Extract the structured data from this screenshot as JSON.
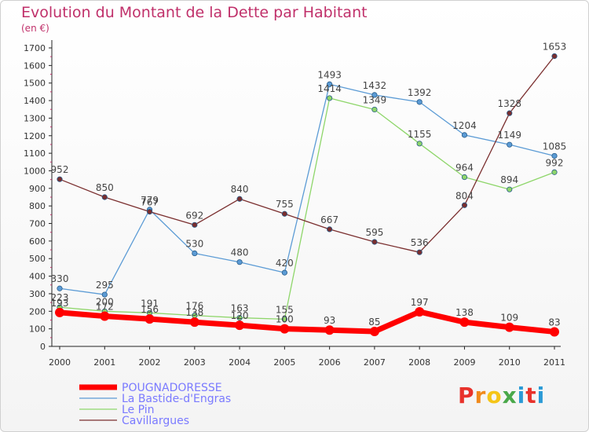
{
  "header": {
    "title": "Evolution du Montant de la Dette par Habitant",
    "subtitle": "(en €)"
  },
  "logo": {
    "text": "Proxiti",
    "colors": [
      "#e8322b",
      "#f08a1c",
      "#f5c518",
      "#4aa84a",
      "#2a9ad6",
      "#e8322b",
      "#2a9ad6"
    ]
  },
  "chart_data": {
    "type": "line",
    "title": "Evolution du Montant de la Dette par Habitant",
    "subtitle": "(en €)",
    "categories": [
      "2000",
      "2001",
      "2002",
      "2003",
      "2004",
      "2005",
      "2006",
      "2007",
      "2008",
      "2009",
      "2010",
      "2011"
    ],
    "ylim": [
      0,
      1700
    ],
    "yticks": [
      0,
      100,
      200,
      300,
      400,
      500,
      600,
      700,
      800,
      900,
      1000,
      1100,
      1200,
      1300,
      1400,
      1500,
      1600,
      1700
    ],
    "grid": false,
    "legend_position": "bottom-left",
    "series": [
      {
        "name": "POUGNADORESSE",
        "color": "#ff0000",
        "width": 7,
        "marker_size": 6,
        "values": [
          193,
          172,
          156,
          138,
          120,
          100,
          93,
          85,
          197,
          138,
          109,
          83
        ]
      },
      {
        "name": "La Bastide-d'Engras",
        "color": "#5b9bd5",
        "width": 1.3,
        "marker_size": 3.2,
        "values": [
          330,
          295,
          779,
          530,
          480,
          420,
          1493,
          1432,
          1392,
          1204,
          1149,
          1085
        ]
      },
      {
        "name": "Le Pin",
        "color": "#8ed66a",
        "width": 1.3,
        "marker_size": 3.2,
        "values": [
          223,
          200,
          191,
          176,
          163,
          155,
          1414,
          1349,
          1155,
          964,
          894,
          992
        ]
      },
      {
        "name": "Cavillargues",
        "color": "#7a2e2e",
        "width": 1.3,
        "marker_size": 3.2,
        "values": [
          952,
          850,
          767,
          692,
          840,
          755,
          667,
          595,
          536,
          804,
          1328,
          1653
        ]
      }
    ]
  }
}
